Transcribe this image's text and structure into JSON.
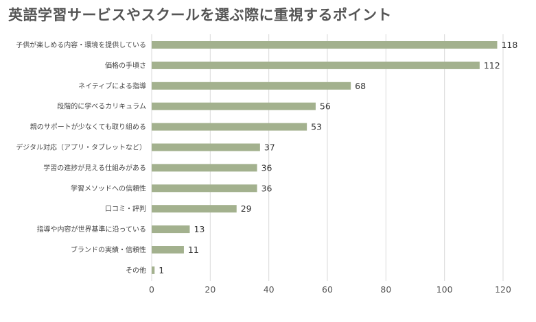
{
  "chart_data": {
    "type": "bar",
    "orientation": "horizontal",
    "title": "英語学習サービスやスクールを選ぶ際に重視するポイント",
    "categories": [
      "子供が楽しめる内容・環境を提供している",
      "価格の手頃さ",
      "ネイティブによる指導",
      "段階的に学べるカリキュラム",
      "親のサポートが少なくても取り組める",
      "デジタル対応（アプリ・タブレットなど）",
      "学習の進捗が見える仕組みがある",
      "学習メソッドへの信頼性",
      "口コミ・評判",
      "指導や内容が世界基準に沿っている",
      "ブランドの実績・信頼性",
      "その他"
    ],
    "values": [
      118,
      112,
      68,
      56,
      53,
      37,
      36,
      36,
      29,
      13,
      11,
      1
    ],
    "xlim": [
      0,
      120
    ],
    "xticks": [
      0,
      20,
      40,
      60,
      80,
      100,
      120
    ],
    "grid": true,
    "bar_color": "#a3b18e"
  }
}
